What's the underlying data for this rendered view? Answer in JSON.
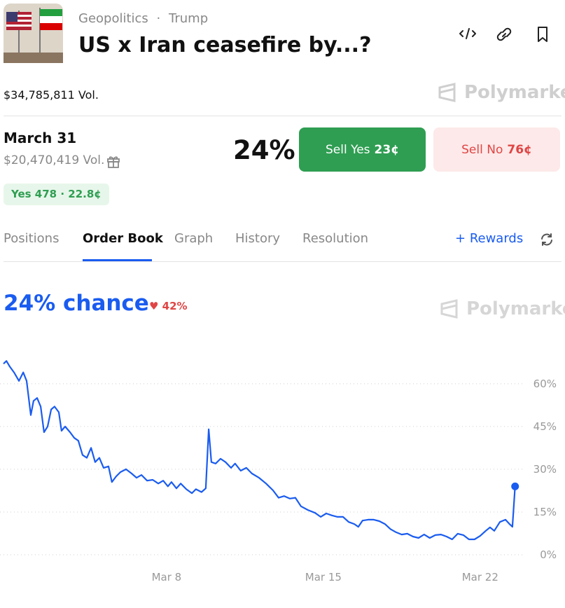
{
  "header": {
    "category": "Geopolitics",
    "separator": "·",
    "tag": "Trump",
    "title": "US x Iran ceasefire by...?"
  },
  "volume": "$34,785,811 Vol.",
  "brand": "Polymarket",
  "market": {
    "date": "March 31",
    "volume": "$20,470,419 Vol.",
    "percent": "24%",
    "sell_yes": {
      "label": "Sell Yes",
      "price": "23¢"
    },
    "sell_no": {
      "label": "Sell No",
      "price": "76¢"
    },
    "position": "Yes 478 · 22.8¢"
  },
  "tabs": [
    "Positions",
    "Order Book",
    "Graph",
    "History",
    "Resolution"
  ],
  "rewards": "Rewards",
  "chart_data": {
    "type": "line",
    "title": "24% chance",
    "change": "42%",
    "color": "#1a5cf0",
    "x": [
      0.72,
      0.85,
      1.0,
      1.19,
      1.41,
      1.6,
      1.75,
      1.94,
      2.06,
      2.22,
      2.38,
      2.53,
      2.69,
      2.85,
      3.0,
      3.19,
      3.31,
      3.47,
      3.69,
      3.88,
      4.06,
      4.25,
      4.44,
      4.63,
      4.81,
      5.0,
      5.19,
      5.41,
      5.56,
      5.75,
      5.94,
      6.19,
      6.44,
      6.66,
      6.88,
      7.13,
      7.38,
      7.63,
      7.85,
      8.06,
      8.22,
      8.44,
      8.63,
      8.88,
      9.13,
      9.31,
      9.56,
      9.75,
      9.88,
      10.0,
      10.19,
      10.41,
      10.63,
      10.88,
      11.06,
      11.31,
      11.56,
      11.81,
      12.13,
      12.44,
      12.75,
      13.0,
      13.25,
      13.5,
      13.75,
      14.0,
      14.31,
      14.63,
      14.88,
      15.13,
      15.38,
      15.63,
      15.88,
      16.13,
      16.38,
      16.56,
      16.75,
      17.0,
      17.25,
      17.5,
      17.75,
      18.0,
      18.25,
      18.5,
      18.75,
      19.0,
      19.25,
      19.5,
      19.75,
      20.0,
      20.25,
      20.5,
      20.75,
      21.0,
      21.25,
      21.5,
      21.75,
      22.0,
      22.25,
      22.44,
      22.63,
      22.88,
      23.13,
      23.31,
      23.44,
      23.56
    ],
    "values": [
      67,
      68,
      66,
      64,
      61,
      64,
      61,
      49,
      54,
      55,
      52,
      43,
      45,
      51,
      52,
      50,
      43.5,
      45,
      43,
      41,
      40,
      35,
      34,
      37.5,
      32.5,
      34,
      30.5,
      31,
      25.5,
      27.5,
      29,
      30,
      28.5,
      27,
      28,
      26,
      26.3,
      25,
      26,
      24,
      25.5,
      23.3,
      25,
      23,
      21.6,
      23,
      22,
      23.3,
      44,
      32.5,
      32,
      33.7,
      32.5,
      30.5,
      32,
      29.5,
      30.5,
      28.5,
      27,
      25,
      22.6,
      20,
      20.6,
      19.7,
      20,
      17,
      15.7,
      14.7,
      13.3,
      14.5,
      13.8,
      13.3,
      13.3,
      11.5,
      10.8,
      9.8,
      12,
      12.3,
      12.3,
      11.8,
      10.8,
      9,
      7.9,
      7.1,
      7.4,
      6.4,
      5.9,
      7.1,
      5.9,
      6.9,
      7.1,
      6.4,
      5.4,
      7.4,
      6.9,
      5.4,
      5.4,
      6.6,
      8.4,
      9.6,
      8.4,
      11.5,
      12.3,
      10.8,
      9.8,
      24
    ],
    "xlim": [
      0.72,
      23.85
    ],
    "xticks": [
      {
        "value": 8,
        "label": "Mar 8"
      },
      {
        "value": 15,
        "label": "Mar 15"
      },
      {
        "value": 22,
        "label": "Mar 22"
      }
    ],
    "ylim": [
      0,
      72
    ],
    "yticks": [
      {
        "value": 0,
        "label": "0%"
      },
      {
        "value": 15,
        "label": "15%"
      },
      {
        "value": 30,
        "label": "30%"
      },
      {
        "value": 45,
        "label": "45%"
      },
      {
        "value": 60,
        "label": "60%"
      }
    ],
    "grid": true
  }
}
